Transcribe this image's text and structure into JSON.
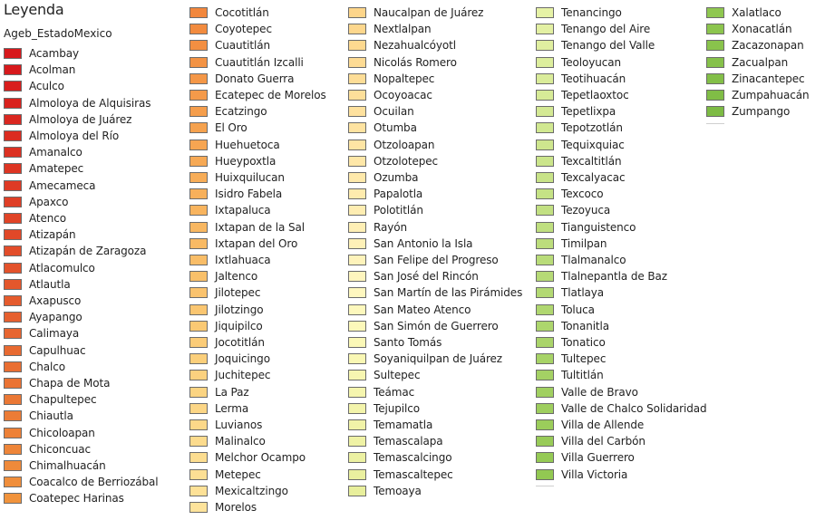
{
  "legend": {
    "title": "Leyenda",
    "layer_name": "Ageb_EstadoMexico",
    "columns": [
      {
        "items": [
          {
            "label": "Acambay",
            "color": "#d7191c"
          },
          {
            "label": "Acolman",
            "color": "#d7191c"
          },
          {
            "label": "Aculco",
            "color": "#d81e1d"
          },
          {
            "label": "Almoloya de Alquisiras",
            "color": "#d9221e"
          },
          {
            "label": "Almoloya de Juárez",
            "color": "#da2720"
          },
          {
            "label": "Almoloya del Río",
            "color": "#db2c21"
          },
          {
            "label": "Amanalco",
            "color": "#dc3122"
          },
          {
            "label": "Amatepec",
            "color": "#dd3523"
          },
          {
            "label": "Amecameca",
            "color": "#de3a25"
          },
          {
            "label": "Apaxco",
            "color": "#df3f26"
          },
          {
            "label": "Atenco",
            "color": "#e04427"
          },
          {
            "label": "Atizapán",
            "color": "#e14828"
          },
          {
            "label": "Atizapán de Zaragoza",
            "color": "#e24d2a"
          },
          {
            "label": "Atlacomulco",
            "color": "#e3522b"
          },
          {
            "label": "Atlautla",
            "color": "#e4572c"
          },
          {
            "label": "Axapusco",
            "color": "#e55b2d"
          },
          {
            "label": "Ayapango",
            "color": "#e6602f"
          },
          {
            "label": "Calimaya",
            "color": "#e76530"
          },
          {
            "label": "Capulhuac",
            "color": "#e86a31"
          },
          {
            "label": "Chalco",
            "color": "#e96e32"
          },
          {
            "label": "Chapa de Mota",
            "color": "#ea7334"
          },
          {
            "label": "Chapultepec",
            "color": "#eb7835"
          },
          {
            "label": "Chiautla",
            "color": "#ec7c36"
          },
          {
            "label": "Chicoloapan",
            "color": "#ed8137"
          },
          {
            "label": "Chiconcuac",
            "color": "#ee8539"
          },
          {
            "label": "Chimalhuacán",
            "color": "#ef8a3a"
          },
          {
            "label": "Coacalco de Berriozábal",
            "color": "#f08e3b"
          },
          {
            "label": "Coatepec Harinas",
            "color": "#f1933c"
          }
        ]
      },
      {
        "items": [
          {
            "label": "Cocotitlán",
            "color": "#f2873d"
          },
          {
            "label": "Coyotepec",
            "color": "#f28b3f"
          },
          {
            "label": "Cuautitlán",
            "color": "#f38f42"
          },
          {
            "label": "Cuautitlán Izcalli",
            "color": "#f39344"
          },
          {
            "label": "Donato Guerra",
            "color": "#f49747"
          },
          {
            "label": "Ecatepec de Morelos",
            "color": "#f49a4a"
          },
          {
            "label": "Ecatzingo",
            "color": "#f59e4c"
          },
          {
            "label": "El Oro",
            "color": "#f5a24f"
          },
          {
            "label": "Huehuetoca",
            "color": "#f6a552"
          },
          {
            "label": "Hueypoxtla",
            "color": "#f6a955"
          },
          {
            "label": "Huixquilucan",
            "color": "#f7ad58"
          },
          {
            "label": "Isidro Fabela",
            "color": "#f7b05b"
          },
          {
            "label": "Ixtapaluca",
            "color": "#f8b45e"
          },
          {
            "label": "Ixtapan de la Sal",
            "color": "#f8b761"
          },
          {
            "label": "Ixtapan del Oro",
            "color": "#f9ba64"
          },
          {
            "label": "Ixtlahuaca",
            "color": "#f9bd67"
          },
          {
            "label": "Jaltenco",
            "color": "#f9c06a"
          },
          {
            "label": "Jilotepec",
            "color": "#fac36e"
          },
          {
            "label": "Jilotzingo",
            "color": "#fac671"
          },
          {
            "label": "Jiquipilco",
            "color": "#fac974"
          },
          {
            "label": "Jocotitlán",
            "color": "#fbcc78"
          },
          {
            "label": "Joquicingo",
            "color": "#fbcf7b"
          },
          {
            "label": "Juchitepec",
            "color": "#fbd17f"
          },
          {
            "label": "La Paz",
            "color": "#fbd482"
          },
          {
            "label": "Lerma",
            "color": "#fcd686"
          },
          {
            "label": "Luvianos",
            "color": "#fcd889"
          },
          {
            "label": "Malinalco",
            "color": "#fcdb8d"
          },
          {
            "label": "Melchor Ocampo",
            "color": "#fcdd90"
          },
          {
            "label": "Metepec",
            "color": "#fcdf94"
          },
          {
            "label": "Mexicaltzingo",
            "color": "#fde197"
          },
          {
            "label": "Morelos",
            "color": "#fde39b"
          }
        ]
      },
      {
        "items": [
          {
            "label": "Naucalpan de Juárez",
            "color": "#fdd58a"
          },
          {
            "label": "Nextlalpan",
            "color": "#fdd78d"
          },
          {
            "label": "Nezahualcóyotl",
            "color": "#fdd990"
          },
          {
            "label": "Nicolás Romero",
            "color": "#fddb94"
          },
          {
            "label": "Nopaltepec",
            "color": "#fddd97"
          },
          {
            "label": "Ocoyoacac",
            "color": "#fddf9a"
          },
          {
            "label": "Ocuilan",
            "color": "#fee19e"
          },
          {
            "label": "Otumba",
            "color": "#fee3a1"
          },
          {
            "label": "Otzoloapan",
            "color": "#fee5a4"
          },
          {
            "label": "Otzolotepec",
            "color": "#fee7a8"
          },
          {
            "label": "Ozumba",
            "color": "#fee9ab"
          },
          {
            "label": "Papalotla",
            "color": "#feebae"
          },
          {
            "label": "Polotitlán",
            "color": "#feedb2"
          },
          {
            "label": "Rayón",
            "color": "#feefb5"
          },
          {
            "label": "San Antonio la Isla",
            "color": "#fef1b8"
          },
          {
            "label": "San Felipe del Progreso",
            "color": "#fef3bb"
          },
          {
            "label": "San José del Rincón",
            "color": "#fef5be"
          },
          {
            "label": "San Martín de las Pirámides",
            "color": "#fef7bf"
          },
          {
            "label": "San Mateo Atenco",
            "color": "#fdf8bd"
          },
          {
            "label": "San Simón de Guerrero",
            "color": "#fcf8ba"
          },
          {
            "label": "Santo Tomás",
            "color": "#fbf8b7"
          },
          {
            "label": "Soyaniquilpan de Juárez",
            "color": "#f9f7b4"
          },
          {
            "label": "Sultepec",
            "color": "#f7f6b1"
          },
          {
            "label": "Teámac",
            "color": "#f5f5ae"
          },
          {
            "label": "Tejupilco",
            "color": "#f3f4ab"
          },
          {
            "label": "Temamatla",
            "color": "#f1f3a8"
          },
          {
            "label": "Temascalapa",
            "color": "#eff2a5"
          },
          {
            "label": "Temascalcingo",
            "color": "#ecf1a2"
          },
          {
            "label": "Temascaltepec",
            "color": "#eaf09f"
          },
          {
            "label": "Temoaya",
            "color": "#e8ef9c"
          }
        ]
      },
      {
        "items": [
          {
            "label": "Tenancingo",
            "color": "#e6f2a6"
          },
          {
            "label": "Tenango del Aire",
            "color": "#e3f0a3"
          },
          {
            "label": "Tenango del Valle",
            "color": "#e0efa0"
          },
          {
            "label": "Teoloyucan",
            "color": "#ddee9d"
          },
          {
            "label": "Teotihuacán",
            "color": "#daec9a"
          },
          {
            "label": "Tepetlaoxtoc",
            "color": "#d7eb97"
          },
          {
            "label": "Tepetlixpa",
            "color": "#d4e994"
          },
          {
            "label": "Tepotzotlán",
            "color": "#d1e891"
          },
          {
            "label": "Tequixquiac",
            "color": "#cee68e"
          },
          {
            "label": "Texcaltitlán",
            "color": "#cbe58b"
          },
          {
            "label": "Texcalyacac",
            "color": "#c8e388"
          },
          {
            "label": "Texcoco",
            "color": "#c5e285"
          },
          {
            "label": "Tezoyuca",
            "color": "#c2e082"
          },
          {
            "label": "Tianguistenco",
            "color": "#bfdf7f"
          },
          {
            "label": "Timilpan",
            "color": "#bcdd7c"
          },
          {
            "label": "Tlalmanalco",
            "color": "#b9dc79"
          },
          {
            "label": "Tlalnepantla de Baz",
            "color": "#b6da76"
          },
          {
            "label": "Tlatlaya",
            "color": "#b3d973"
          },
          {
            "label": "Toluca",
            "color": "#b0d770"
          },
          {
            "label": "Tonanitla",
            "color": "#add66d"
          },
          {
            "label": "Tonatico",
            "color": "#aad46a"
          },
          {
            "label": "Tultepec",
            "color": "#a7d367"
          },
          {
            "label": "Tultitlán",
            "color": "#a4d164"
          },
          {
            "label": "Valle de Bravo",
            "color": "#a1d061"
          },
          {
            "label": "Valle de Chalco Solidaridad",
            "color": "#9ece5e"
          },
          {
            "label": "Villa de Allende",
            "color": "#9bcd5b"
          },
          {
            "label": "Villa del Carbón",
            "color": "#98cb58"
          },
          {
            "label": "Villa Guerrero",
            "color": "#95ca55"
          },
          {
            "label": "Villa Victoria",
            "color": "#92c852"
          }
        ]
      },
      {
        "items": [
          {
            "label": "Xalatlaco",
            "color": "#8fc750"
          },
          {
            "label": "Xonacatlán",
            "color": "#8cc54e"
          },
          {
            "label": "Zacazonapan",
            "color": "#89c34c"
          },
          {
            "label": "Zacualpan",
            "color": "#86c14a"
          },
          {
            "label": "Zinacantepec",
            "color": "#83bf48"
          },
          {
            "label": "Zumpahuacán",
            "color": "#80bd46"
          },
          {
            "label": "Zumpango",
            "color": "#7dbb44"
          }
        ]
      }
    ]
  }
}
